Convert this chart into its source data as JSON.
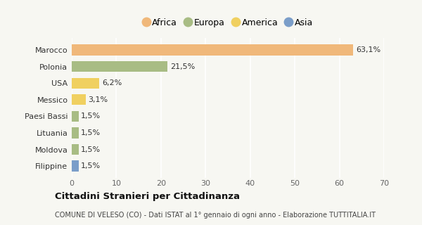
{
  "categories": [
    "Filippine",
    "Moldova",
    "Lituania",
    "Paesi Bassi",
    "Messico",
    "USA",
    "Polonia",
    "Marocco"
  ],
  "values": [
    1.5,
    1.5,
    1.5,
    1.5,
    3.1,
    6.2,
    21.5,
    63.1
  ],
  "labels": [
    "1,5%",
    "1,5%",
    "1,5%",
    "1,5%",
    "3,1%",
    "6,2%",
    "21,5%",
    "63,1%"
  ],
  "colors": [
    "#7b9ec9",
    "#a8bc84",
    "#a8bc84",
    "#a8bc84",
    "#f0d060",
    "#f0d060",
    "#a8bc84",
    "#f0b87a"
  ],
  "legend_labels": [
    "Africa",
    "Europa",
    "America",
    "Asia"
  ],
  "legend_colors": [
    "#f0b87a",
    "#a8bc84",
    "#f0d060",
    "#7b9ec9"
  ],
  "xlim": [
    0,
    70
  ],
  "xticks": [
    0,
    10,
    20,
    30,
    40,
    50,
    60,
    70
  ],
  "title": "Cittadini Stranieri per Cittadinanza",
  "subtitle": "COMUNE DI VELESO (CO) - Dati ISTAT al 1° gennaio di ogni anno - Elaborazione TUTTITALIA.IT",
  "bg_color": "#f7f7f2",
  "bar_height": 0.65,
  "grid_color": "#ffffff",
  "label_fontsize": 8,
  "tick_fontsize": 8,
  "ytick_fontsize": 8
}
